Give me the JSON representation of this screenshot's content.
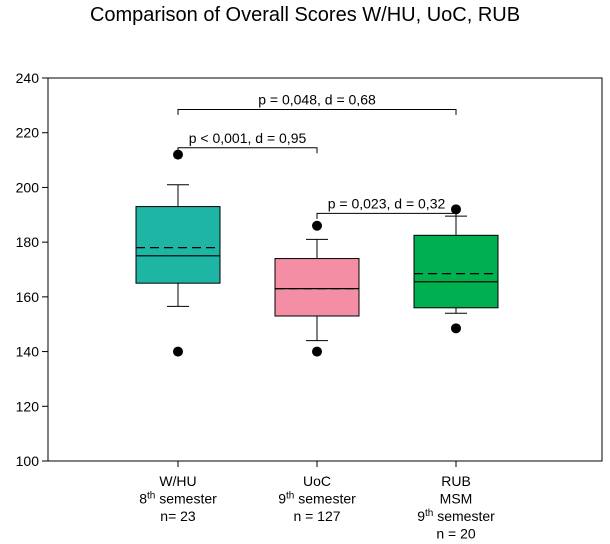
{
  "chart_data": {
    "type": "box",
    "title": "Comparison of Overall Scores W/HU, UoC, RUB",
    "xlabel": "",
    "ylabel": "",
    "ylim": [
      100,
      240
    ],
    "yticks": [
      100,
      120,
      140,
      160,
      180,
      200,
      220,
      240
    ],
    "grid": false,
    "legend": "none",
    "groups": [
      {
        "label_lines": [
          {
            "text": "W/HU"
          },
          {
            "base": "8",
            "sup": "th",
            "rest": " semester"
          },
          {
            "text": "n= 23"
          }
        ],
        "color": "#1fb5a5",
        "whisker_low": 156.5,
        "q1": 165,
        "median": 175,
        "mean": 178,
        "q3": 193,
        "whisker_high": 201,
        "outliers": [
          212,
          140
        ]
      },
      {
        "label_lines": [
          {
            "text": "UoC"
          },
          {
            "base": "9",
            "sup": "th",
            "rest": " semester"
          },
          {
            "text": "n = 127"
          }
        ],
        "color": "#f48ea4",
        "whisker_low": 144,
        "q1": 153,
        "median": 163,
        "mean": 163,
        "q3": 174,
        "whisker_high": 181,
        "outliers": [
          186,
          140
        ]
      },
      {
        "label_lines": [
          {
            "text": "RUB"
          },
          {
            "text": "MSM"
          },
          {
            "base": "9",
            "sup": "th",
            "rest": " semester"
          },
          {
            "text": "n = 20"
          }
        ],
        "color": "#00b050",
        "whisker_low": 154,
        "q1": 156,
        "median": 165.5,
        "mean": 168.5,
        "q3": 182.5,
        "whisker_high": 189.5,
        "outliers": [
          192,
          148.5
        ]
      }
    ],
    "annotations": [
      {
        "text": "p = 0,048, d = 0,68",
        "from_group": 0,
        "to_group": 2,
        "y": 228.5,
        "drop_to": 226.5
      },
      {
        "text": "p < 0,001, d = 0,95",
        "from_group": 0,
        "to_group": 1,
        "y": 214.5,
        "drop_to": 212.5
      },
      {
        "text": "p = 0,023, d = 0,32",
        "from_group": 1,
        "to_group": 2,
        "y": 190.5,
        "drop_to": 188.5
      }
    ]
  },
  "style": {
    "mean_line": "dashed",
    "median_line": "solid",
    "outlier_marker": "filled-circle"
  }
}
